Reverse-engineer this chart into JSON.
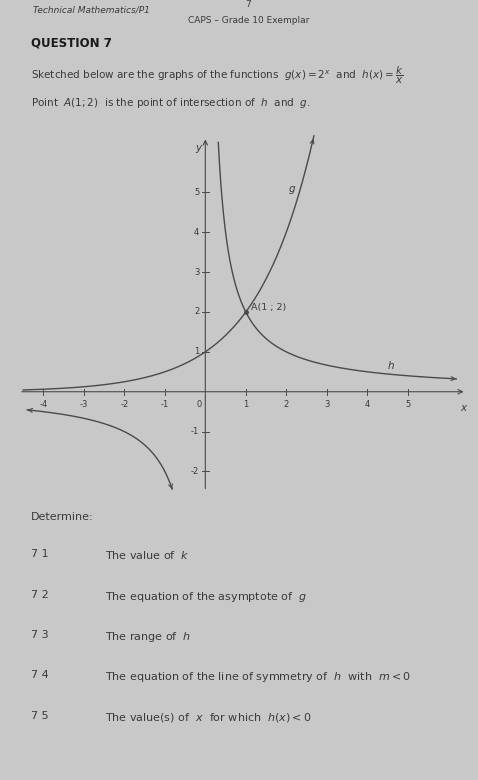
{
  "header_left": "Technical Mathematics/P1",
  "header_center": "7",
  "header_right": "CAPS – Grade 10 Exemplar",
  "question_title": "QUESTION 7",
  "intro_line1": "Sketched below are the graphs of the functions  $g(x) = 2^x$  and  $h(x) = \\dfrac{k}{x}$",
  "intro_line2": "Point  $A(1; 2)$  is the point of intersection of  $h$  and  $g$.",
  "determine_label": "Determine:",
  "questions": [
    {
      "num": "7 1",
      "text": "The value of  $k$"
    },
    {
      "num": "7 2",
      "text": "The equation of the asymptote of  $g$"
    },
    {
      "num": "7 3",
      "text": "The range of  $h$"
    },
    {
      "num": "7 4",
      "text": "The equation of the line of symmetry of  $h$  with  $m < 0$"
    },
    {
      "num": "7 5",
      "text": "The value(s) of  $x$  for which  $h(x) < 0$"
    }
  ],
  "bg_color": "#c8c8c8",
  "text_color": "#3a3a3a",
  "curve_color": "#4a4a4a",
  "axis_color": "#4a4a4a",
  "xmin": -4.6,
  "xmax": 6.5,
  "ymin": -2.5,
  "ymax": 6.5,
  "xticks": [
    -4,
    -3,
    -2,
    -1,
    1,
    2,
    3,
    4,
    5
  ],
  "yticks": [
    -2,
    -1,
    1,
    2,
    3,
    4,
    5
  ],
  "point_A": [
    1,
    2
  ],
  "label_A": "A(1 ; 2)",
  "label_g": "g",
  "label_h": "h"
}
